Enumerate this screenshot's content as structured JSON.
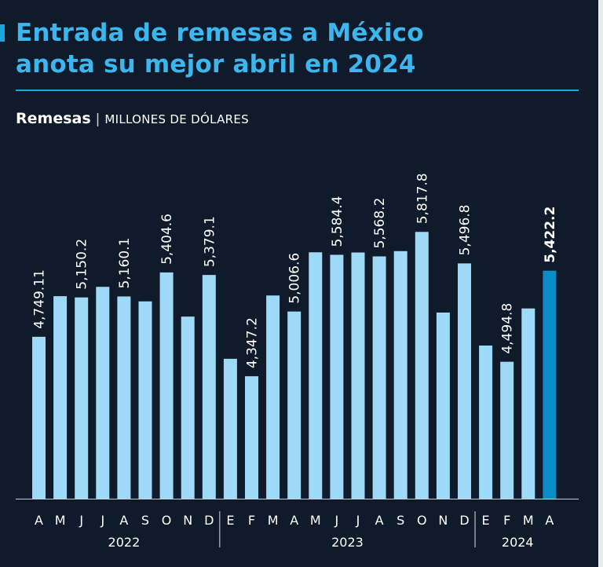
{
  "title": {
    "line1": "Entrada de remesas a México",
    "line2": "anota su mejor abril en 2024"
  },
  "subtitle": {
    "label": "Remesas",
    "separator": "|",
    "unit": "MILLONES DE DÓLARES"
  },
  "colors": {
    "background": "#0f1b2a",
    "accent": "#1aa7e0",
    "bar": "#9fd9f8",
    "highlight_bar": "#0a8cc5",
    "text": "#ffffff"
  },
  "chart_data": {
    "type": "bar",
    "title": "Remesas",
    "ylabel": "Millones de dólares",
    "xlabel": "",
    "ylim": [
      3100,
      6100
    ],
    "categories": [
      "A",
      "M",
      "J",
      "J",
      "A",
      "S",
      "O",
      "N",
      "D",
      "E",
      "F",
      "M",
      "A",
      "M",
      "J",
      "J",
      "A",
      "S",
      "O",
      "N",
      "D",
      "E",
      "F",
      "M",
      "A"
    ],
    "values": [
      4749.11,
      5163,
      5150.2,
      5258,
      5160.1,
      5110,
      5404.6,
      4955,
      5379.1,
      4525,
      4347.2,
      5170,
      5006.6,
      5610,
      5584.4,
      5608,
      5568.2,
      5622,
      5817.8,
      4996,
      5496.8,
      4660,
      4494.8,
      5038,
      5422.2
    ],
    "data_labels": [
      "4,749.11",
      "",
      "5,150.2",
      "",
      "5,160.1",
      "",
      "5,404.6",
      "",
      "5,379.1",
      "",
      "4,347.2",
      "",
      "5,006.6",
      "",
      "5,584.4",
      "",
      "5,568.2",
      "",
      "5,817.8",
      "",
      "5,496.8",
      "",
      "4,494.8",
      "",
      "5,422.2"
    ],
    "highlight_index": 24,
    "years": [
      {
        "label": "2022",
        "start": 0,
        "end": 8
      },
      {
        "label": "2023",
        "start": 9,
        "end": 20
      },
      {
        "label": "2024",
        "start": 21,
        "end": 24
      }
    ],
    "year_separators_after": [
      8,
      20
    ]
  }
}
